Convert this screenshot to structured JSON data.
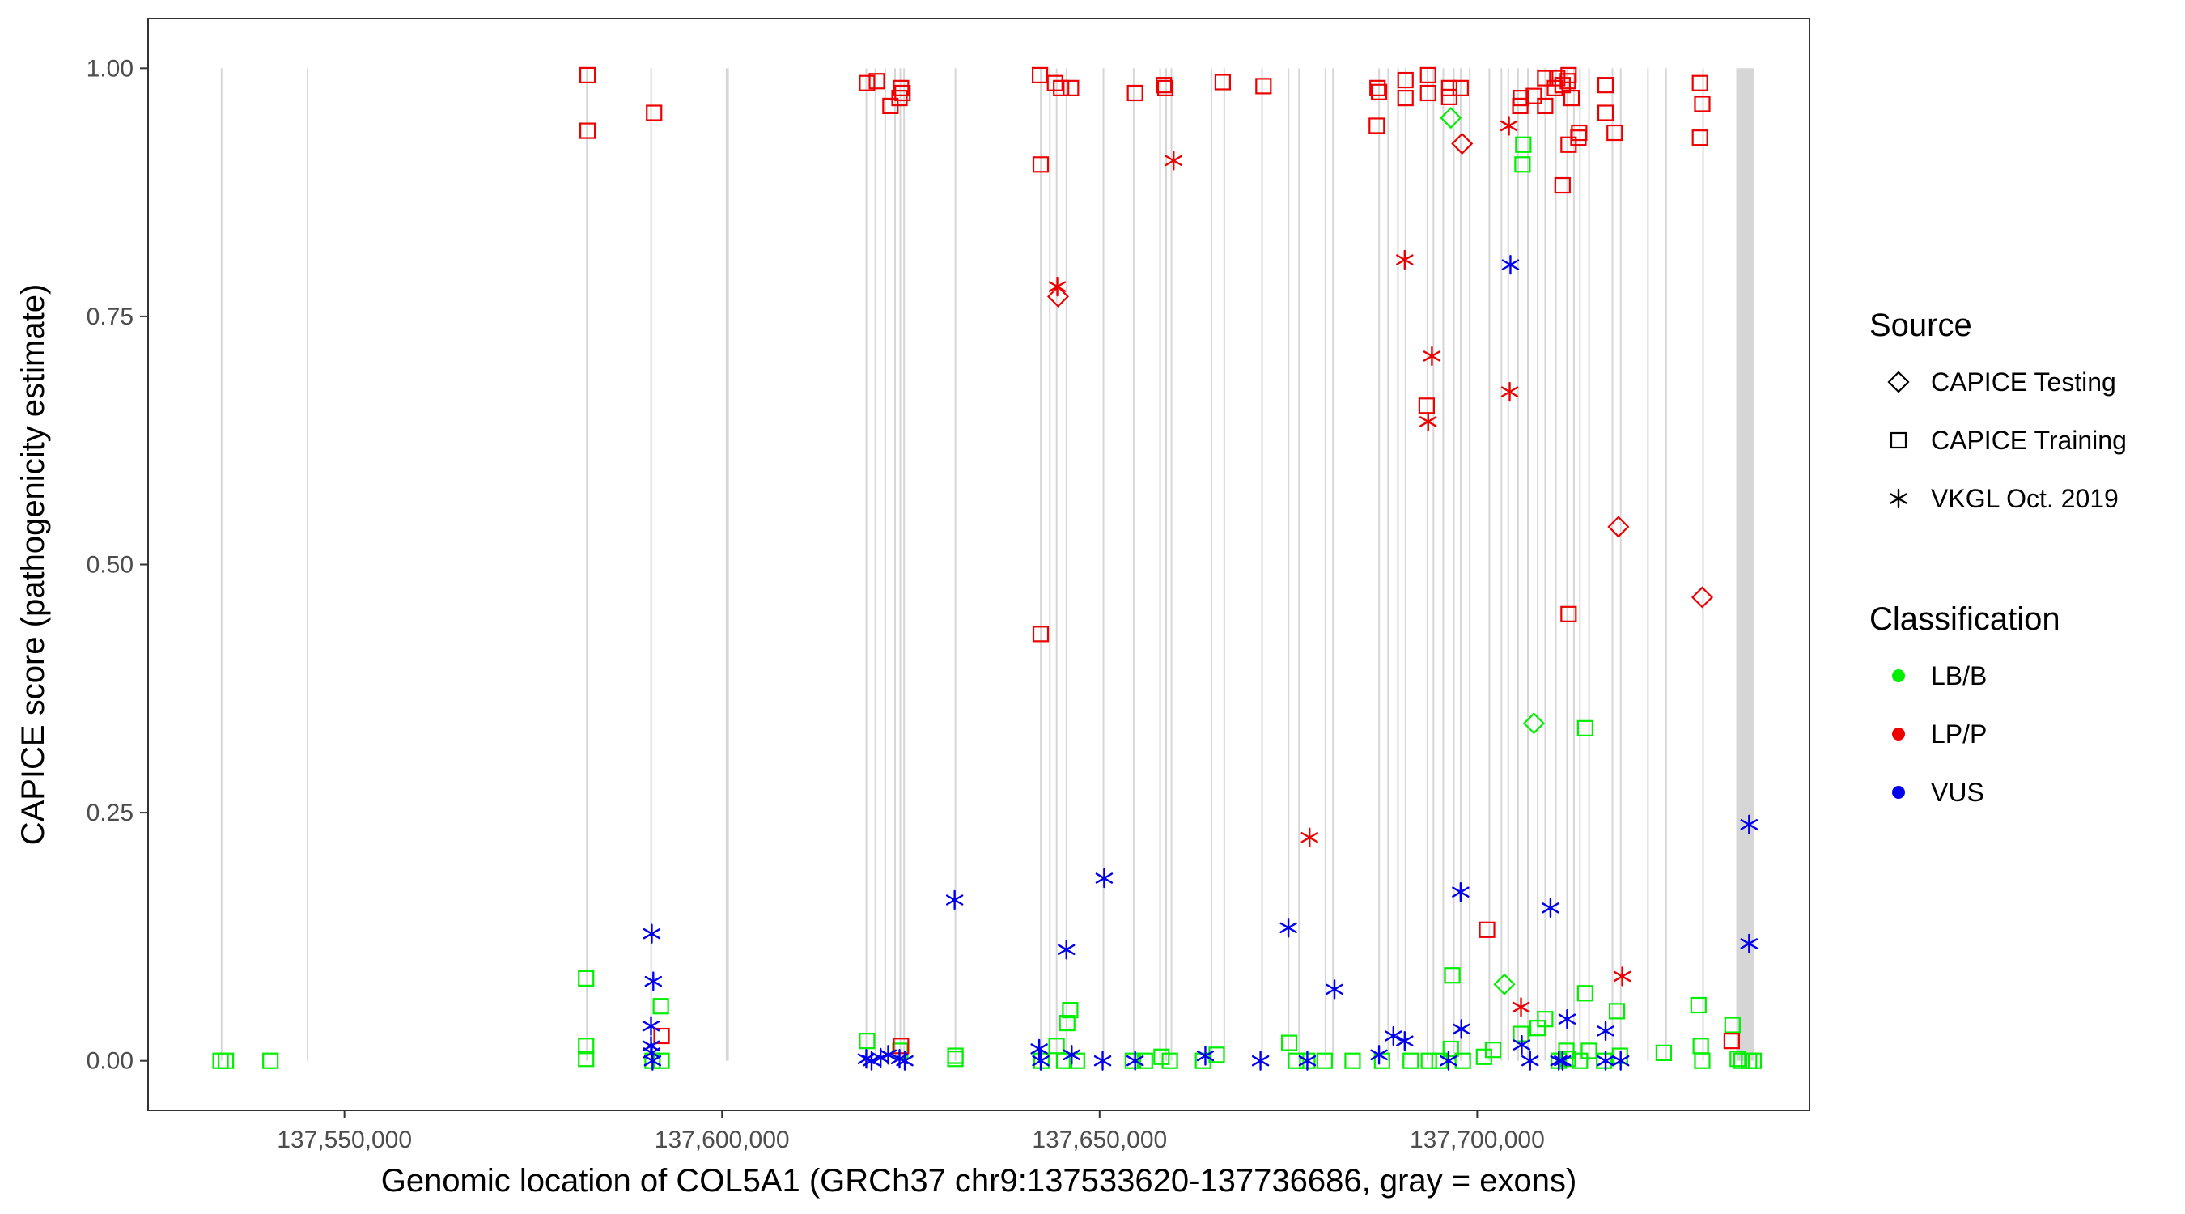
{
  "chart_data": {
    "type": "scatter",
    "xlabel": "Genomic location of COL5A1 (GRCh37 chr9:137533620-137736686, gray = exons)",
    "ylabel": "CAPICE score (pathogenicity estimate)",
    "xlim": [
      137524000,
      137744000
    ],
    "ylim": [
      -0.05,
      1.05
    ],
    "x_ticks": [
      137550000,
      137600000,
      137650000,
      137700000
    ],
    "x_tick_labels": [
      "137,550,000",
      "137,600,000",
      "137,650,000",
      "137,700,000"
    ],
    "y_ticks": [
      0.0,
      0.25,
      0.5,
      0.75,
      1.0
    ],
    "y_tick_labels": [
      "0.00",
      "0.25",
      "0.50",
      "0.75",
      "1.00"
    ],
    "grid": false,
    "exon_color": "#c8c8c8",
    "exons": [
      [
        137533620,
        137533780
      ],
      [
        137545000,
        137545200
      ],
      [
        137582000,
        137582150
      ],
      [
        137590500,
        137590650
      ],
      [
        137600500,
        137600900
      ],
      [
        137619000,
        137619130
      ],
      [
        137620200,
        137620330
      ],
      [
        137621500,
        137621600
      ],
      [
        137622800,
        137622900
      ],
      [
        137623500,
        137623600
      ],
      [
        137624000,
        137624100
      ],
      [
        137630800,
        137630900
      ],
      [
        137642100,
        137642200
      ],
      [
        137643300,
        137643400
      ],
      [
        137644200,
        137644300
      ],
      [
        137645500,
        137645600
      ],
      [
        137650400,
        137650500
      ],
      [
        137654400,
        137654500
      ],
      [
        137657900,
        137658000
      ],
      [
        137658700,
        137658800
      ],
      [
        137659400,
        137659500
      ],
      [
        137664700,
        137664800
      ],
      [
        137666400,
        137666500
      ],
      [
        137671400,
        137671500
      ],
      [
        137674900,
        137675000
      ],
      [
        137676300,
        137676400
      ],
      [
        137679800,
        137679900
      ],
      [
        137680800,
        137680900
      ],
      [
        137686900,
        137687000
      ],
      [
        137688100,
        137688200
      ],
      [
        137689400,
        137689500
      ],
      [
        137690400,
        137690500
      ],
      [
        137693300,
        137693400
      ],
      [
        137694100,
        137694200
      ],
      [
        137695400,
        137695500
      ],
      [
        137696800,
        137696900
      ],
      [
        137697700,
        137697800
      ],
      [
        137698900,
        137699000
      ],
      [
        137701500,
        137701600
      ],
      [
        137703100,
        137703200
      ],
      [
        137704000,
        137704100
      ],
      [
        137705300,
        137705400
      ],
      [
        137706600,
        137706700
      ],
      [
        137707900,
        137708000
      ],
      [
        137708900,
        137709000
      ],
      [
        137710300,
        137710400
      ],
      [
        137711800,
        137711900
      ],
      [
        137712700,
        137712800
      ],
      [
        137713500,
        137713600
      ],
      [
        137714700,
        137714800
      ],
      [
        137717800,
        137717900
      ],
      [
        137718900,
        137719000
      ],
      [
        137722500,
        137722600
      ],
      [
        137724900,
        137725000
      ],
      [
        137729800,
        137729900
      ],
      [
        137734300,
        137736686
      ]
    ],
    "series": [
      {
        "name": "LB/B",
        "source": "CAPICE Testing",
        "shape": "diamond",
        "color": "#00ee00",
        "points": [
          [
            137696500,
            0.95
          ],
          [
            137703600,
            0.077
          ],
          [
            137707500,
            0.34
          ]
        ]
      },
      {
        "name": "LP/P",
        "source": "CAPICE Testing",
        "shape": "diamond",
        "color": "#ee0000",
        "points": [
          [
            137644500,
            0.77
          ],
          [
            137698000,
            0.924
          ],
          [
            137718700,
            0.538
          ],
          [
            137729800,
            0.467
          ]
        ]
      },
      {
        "name": "LB/B",
        "source": "CAPICE Training",
        "shape": "square",
        "color": "#00ee00",
        "points": [
          [
            137533600,
            0.0
          ],
          [
            137534300,
            0.0
          ],
          [
            137540200,
            0.0
          ],
          [
            137582000,
            0.083
          ],
          [
            137582000,
            0.015
          ],
          [
            137582000,
            0.002
          ],
          [
            137590800,
            0.0
          ],
          [
            137591900,
            0.055
          ],
          [
            137592000,
            0.0
          ],
          [
            137619200,
            0.02
          ],
          [
            137623600,
            0.01
          ],
          [
            137630900,
            0.002
          ],
          [
            137630900,
            0.005
          ],
          [
            137642300,
            0.0
          ],
          [
            137644300,
            0.015
          ],
          [
            137645300,
            0.0
          ],
          [
            137645700,
            0.038
          ],
          [
            137646100,
            0.051
          ],
          [
            137647000,
            0.0
          ],
          [
            137654400,
            0.0
          ],
          [
            137656000,
            0.0
          ],
          [
            137658200,
            0.004
          ],
          [
            137659300,
            0.0
          ],
          [
            137663700,
            0.0
          ],
          [
            137665500,
            0.006
          ],
          [
            137675100,
            0.018
          ],
          [
            137676000,
            0.0
          ],
          [
            137677500,
            0.0
          ],
          [
            137679800,
            0.0
          ],
          [
            137683500,
            0.0
          ],
          [
            137687400,
            0.0
          ],
          [
            137691200,
            0.0
          ],
          [
            137693600,
            0.0
          ],
          [
            137695000,
            0.0
          ],
          [
            137696500,
            0.012
          ],
          [
            137696700,
            0.086
          ],
          [
            137698100,
            0.0
          ],
          [
            137700900,
            0.004
          ],
          [
            137702100,
            0.011
          ],
          [
            137705800,
            0.027
          ],
          [
            137706000,
            0.903
          ],
          [
            137706100,
            0.923
          ],
          [
            137708000,
            0.033
          ],
          [
            137709000,
            0.042
          ],
          [
            137710800,
            0.0
          ],
          [
            137711800,
            0.01
          ],
          [
            137712000,
            0.002
          ],
          [
            137713600,
            0.0
          ],
          [
            137714300,
            0.068
          ],
          [
            137714300,
            0.335
          ],
          [
            137714800,
            0.01
          ],
          [
            137716800,
            0.0
          ],
          [
            137718500,
            0.05
          ],
          [
            137718900,
            0.005
          ],
          [
            137724700,
            0.008
          ],
          [
            137729300,
            0.056
          ],
          [
            137729600,
            0.015
          ],
          [
            137729800,
            0.0
          ],
          [
            137733800,
            0.036
          ],
          [
            137734500,
            0.002
          ],
          [
            137735000,
            0.0
          ],
          [
            137736000,
            0.0
          ],
          [
            137736600,
            0.0
          ]
        ]
      },
      {
        "name": "LP/P",
        "source": "CAPICE Training",
        "shape": "square",
        "color": "#ee0000",
        "points": [
          [
            137582200,
            0.993
          ],
          [
            137582200,
            0.937
          ],
          [
            137591000,
            0.955
          ],
          [
            137592000,
            0.025
          ],
          [
            137619200,
            0.985
          ],
          [
            137620500,
            0.987
          ],
          [
            137622300,
            0.962
          ],
          [
            137623500,
            0.97
          ],
          [
            137623700,
            0.98
          ],
          [
            137623900,
            0.975
          ],
          [
            137623700,
            0.015
          ],
          [
            137642100,
            0.993
          ],
          [
            137642200,
            0.903
          ],
          [
            137642200,
            0.43
          ],
          [
            137644100,
            0.985
          ],
          [
            137644900,
            0.98
          ],
          [
            137646200,
            0.98
          ],
          [
            137654700,
            0.975
          ],
          [
            137658500,
            0.983
          ],
          [
            137658700,
            0.98
          ],
          [
            137666300,
            0.986
          ],
          [
            137671700,
            0.982
          ],
          [
            137686800,
            0.98
          ],
          [
            137687000,
            0.976
          ],
          [
            137686700,
            0.942
          ],
          [
            137690500,
            0.988
          ],
          [
            137690500,
            0.97
          ],
          [
            137693500,
            0.993
          ],
          [
            137693500,
            0.975
          ],
          [
            137693300,
            0.66
          ],
          [
            137696300,
            0.98
          ],
          [
            137696300,
            0.971
          ],
          [
            137697800,
            0.98
          ],
          [
            137701300,
            0.132
          ],
          [
            137705700,
            0.962
          ],
          [
            137705800,
            0.97
          ],
          [
            137707500,
            0.972
          ],
          [
            137709000,
            0.99
          ],
          [
            137709000,
            0.962
          ],
          [
            137710300,
            0.98
          ],
          [
            137710600,
            0.99
          ],
          [
            137711300,
            0.983
          ],
          [
            137712000,
            0.987
          ],
          [
            137712100,
            0.993
          ],
          [
            137712500,
            0.97
          ],
          [
            137711300,
            0.882
          ],
          [
            137712100,
            0.923
          ],
          [
            137712100,
            0.45
          ],
          [
            137713400,
            0.93
          ],
          [
            137713500,
            0.935
          ],
          [
            137717000,
            0.983
          ],
          [
            137717000,
            0.955
          ],
          [
            137718200,
            0.935
          ],
          [
            137729500,
            0.985
          ],
          [
            137729500,
            0.93
          ],
          [
            137729800,
            0.964
          ],
          [
            137733700,
            0.02
          ]
        ]
      },
      {
        "name": "LP/P",
        "source": "VKGL Oct. 2019",
        "shape": "asterisk",
        "color": "#ee0000",
        "points": [
          [
            137644400,
            0.78
          ],
          [
            137659800,
            0.907
          ],
          [
            137677800,
            0.225
          ],
          [
            137690400,
            0.807
          ],
          [
            137693500,
            0.644
          ],
          [
            137694000,
            0.71
          ],
          [
            137704200,
            0.942
          ],
          [
            137704300,
            0.674
          ],
          [
            137705800,
            0.054
          ],
          [
            137719200,
            0.085
          ]
        ]
      },
      {
        "name": "VUS",
        "source": "VKGL Oct. 2019",
        "shape": "asterisk",
        "color": "#0000ee",
        "points": [
          [
            137590700,
            0.128
          ],
          [
            137590900,
            0.08
          ],
          [
            137590600,
            0.035
          ],
          [
            137590600,
            0.015
          ],
          [
            137590700,
            0.008
          ],
          [
            137590800,
            0.0
          ],
          [
            137619100,
            0.002
          ],
          [
            137619800,
            0.0
          ],
          [
            137621000,
            0.003
          ],
          [
            137622000,
            0.006
          ],
          [
            137623500,
            0.002
          ],
          [
            137624200,
            0.0
          ],
          [
            137630800,
            0.162
          ],
          [
            137642000,
            0.012
          ],
          [
            137642200,
            0.0
          ],
          [
            137645600,
            0.112
          ],
          [
            137646300,
            0.006
          ],
          [
            137650600,
            0.184
          ],
          [
            137650400,
            0.0
          ],
          [
            137654700,
            0.0
          ],
          [
            137664000,
            0.005
          ],
          [
            137671300,
            0.0
          ],
          [
            137675000,
            0.134
          ],
          [
            137677500,
            0.0
          ],
          [
            137681100,
            0.072
          ],
          [
            137687000,
            0.006
          ],
          [
            137688900,
            0.025
          ],
          [
            137690400,
            0.02
          ],
          [
            137696200,
            0.0
          ],
          [
            137697800,
            0.17
          ],
          [
            137697900,
            0.032
          ],
          [
            137704400,
            0.802
          ],
          [
            137705900,
            0.016
          ],
          [
            137707000,
            0.0
          ],
          [
            137709700,
            0.154
          ],
          [
            137710800,
            0.0
          ],
          [
            137711300,
            0.0
          ],
          [
            137711900,
            0.042
          ],
          [
            137717000,
            0.03
          ],
          [
            137717000,
            0.0
          ],
          [
            137719000,
            0.0
          ],
          [
            137736000,
            0.238
          ],
          [
            137736000,
            0.118
          ]
        ]
      }
    ],
    "legend": {
      "position": "right",
      "source_title": "Source",
      "source_items": [
        {
          "label": "CAPICE Testing",
          "shape": "diamond"
        },
        {
          "label": "CAPICE Training",
          "shape": "square"
        },
        {
          "label": "VKGL Oct. 2019",
          "shape": "asterisk"
        }
      ],
      "class_title": "Classification",
      "class_items": [
        {
          "label": "LB/B",
          "color": "#00ee00"
        },
        {
          "label": "LP/P",
          "color": "#ee0000"
        },
        {
          "label": "VUS",
          "color": "#0000ee"
        }
      ]
    }
  }
}
